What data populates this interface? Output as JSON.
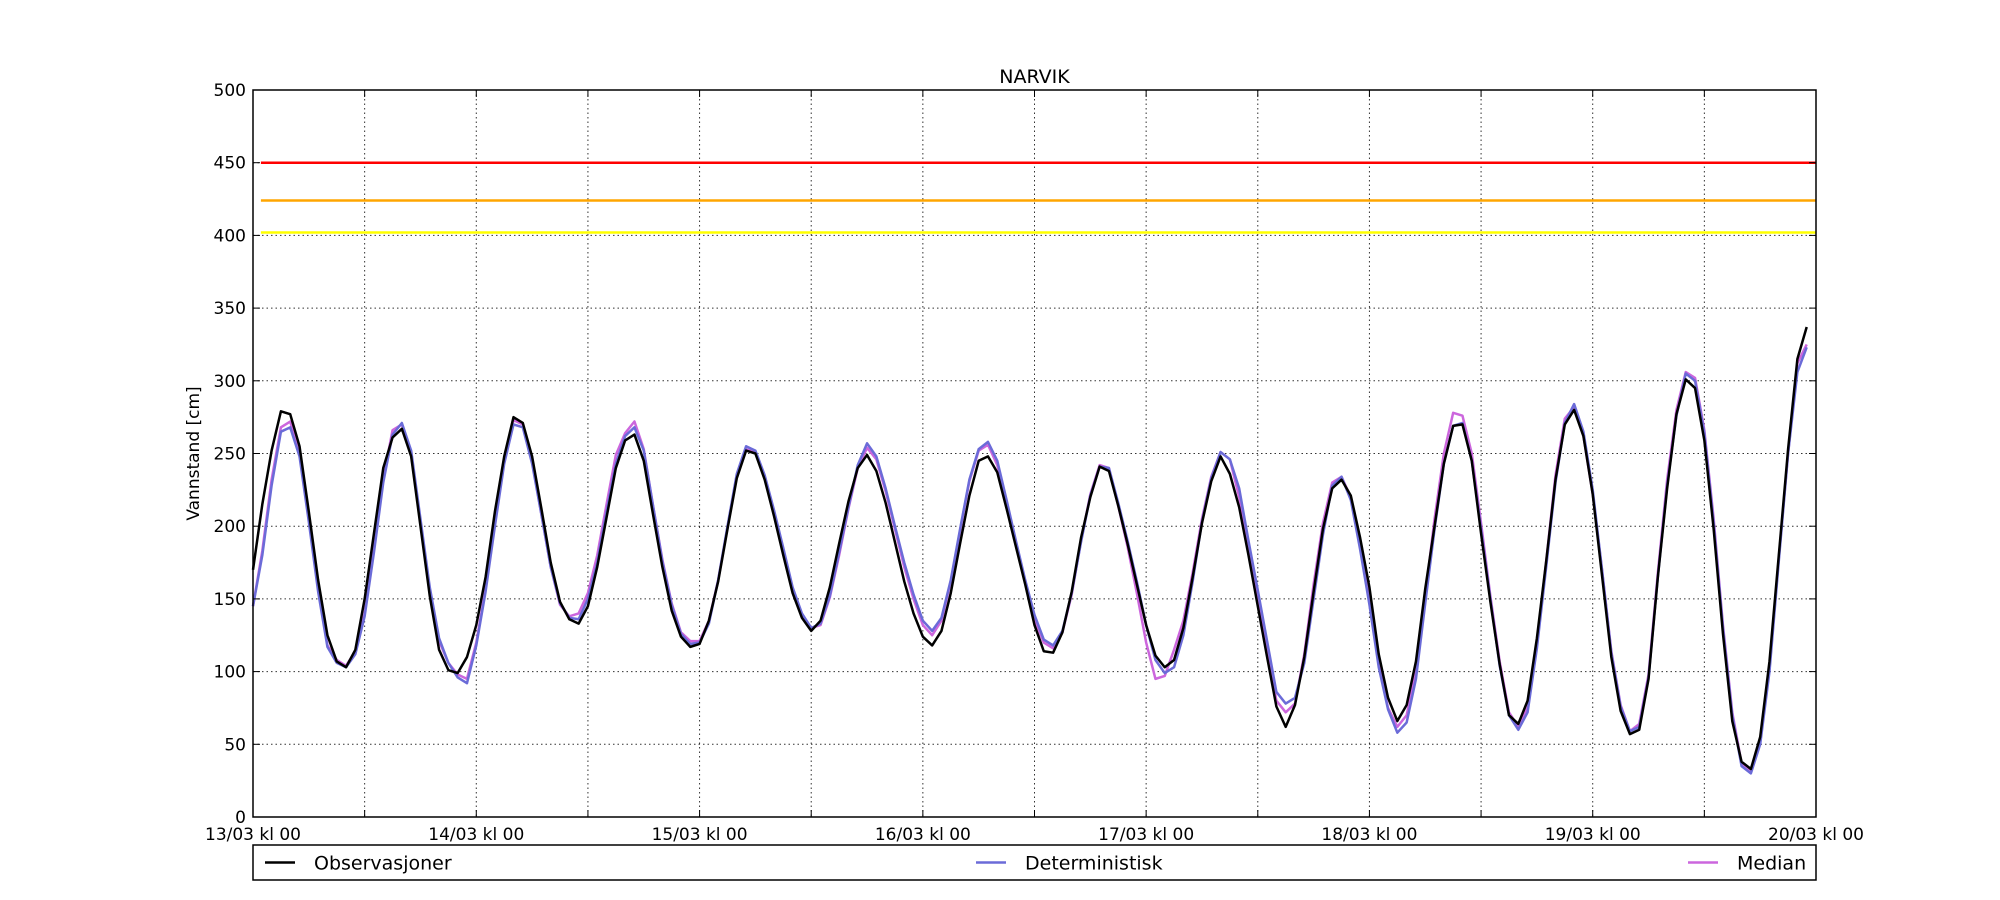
{
  "chart_data": {
    "type": "line",
    "title": "NARVIK",
    "xlabel": "",
    "ylabel": "Vannstand [cm]",
    "ylim": [
      0,
      500
    ],
    "yticks": [
      0,
      50,
      100,
      150,
      200,
      250,
      300,
      350,
      400,
      450,
      500
    ],
    "x_range_hours": [
      0,
      168
    ],
    "xtick_labels": [
      "13/03 kl 00",
      "14/03 kl 00",
      "15/03 kl 00",
      "16/03 kl 00",
      "17/03 kl 00",
      "18/03 kl 00",
      "19/03 kl 00",
      "20/03 kl 00"
    ],
    "grid": true,
    "legend_placement": "bottom",
    "thresholds": [
      {
        "value": 450,
        "color": "#ff0000"
      },
      {
        "value": 424,
        "color": "#ffa500"
      },
      {
        "value": 402,
        "color": "#ffff00"
      }
    ],
    "x_hours": [
      0,
      1,
      2,
      3,
      4,
      5,
      6,
      7,
      8,
      9,
      10,
      11,
      12,
      13,
      14,
      15,
      16,
      17,
      18,
      19,
      20,
      21,
      22,
      23,
      24,
      25,
      26,
      27,
      28,
      29,
      30,
      31,
      32,
      33,
      34,
      35,
      36,
      37,
      38,
      39,
      40,
      41,
      42,
      43,
      44,
      45,
      46,
      47,
      48,
      49,
      50,
      51,
      52,
      53,
      54,
      55,
      56,
      57,
      58,
      59,
      60,
      61,
      62,
      63,
      64,
      65,
      66,
      67,
      68,
      69,
      70,
      71,
      72,
      73,
      74,
      75,
      76,
      77,
      78,
      79,
      80,
      81,
      82,
      83,
      84,
      85,
      86,
      87,
      88,
      89,
      90,
      91,
      92,
      93,
      94,
      95,
      96,
      97,
      98,
      99,
      100,
      101,
      102,
      103,
      104,
      105,
      106,
      107,
      108,
      109,
      110,
      111,
      112,
      113,
      114,
      115,
      116,
      117,
      118,
      119,
      120,
      121,
      122,
      123,
      124,
      125,
      126,
      127,
      128,
      129,
      130,
      131,
      132,
      133,
      134,
      135,
      136,
      137,
      138,
      139,
      140,
      141,
      142,
      143,
      144,
      145,
      146,
      147,
      148,
      149,
      150,
      151,
      152,
      153,
      154,
      155,
      156,
      157,
      158,
      159,
      160,
      161,
      162,
      163,
      164,
      165,
      166,
      167,
      168
    ],
    "series": [
      {
        "name": "Observasjoner",
        "color": "#000000",
        "values": [
          170,
          215,
          252,
          279,
          277,
          255,
          210,
          163,
          125,
          107,
          103,
          115,
          150,
          195,
          240,
          261,
          267,
          248,
          200,
          152,
          115,
          101,
          99,
          110,
          132,
          165,
          210,
          248,
          275,
          271,
          248,
          212,
          175,
          148,
          136,
          133,
          145,
          172,
          206,
          240,
          259,
          263,
          245,
          208,
          172,
          142,
          124,
          117,
          119,
          135,
          162,
          198,
          233,
          252,
          250,
          232,
          207,
          180,
          154,
          137,
          128,
          135,
          158,
          188,
          217,
          240,
          249,
          238,
          216,
          189,
          162,
          140,
          124,
          118,
          128,
          154,
          188,
          221,
          245,
          248,
          237,
          212,
          186,
          160,
          132,
          114,
          113,
          127,
          155,
          192,
          220,
          241,
          238,
          214,
          188,
          160,
          132,
          111,
          103,
          108,
          130,
          165,
          202,
          231,
          248,
          236,
          213,
          180,
          145,
          110,
          76,
          62,
          77,
          110,
          155,
          198,
          226,
          232,
          221,
          192,
          158,
          112,
          82,
          66,
          77,
          107,
          157,
          200,
          243,
          269,
          270,
          245,
          195,
          148,
          105,
          70,
          64,
          80,
          123,
          176,
          232,
          270,
          280,
          262,
          222,
          166,
          110,
          73,
          57,
          60,
          95,
          165,
          226,
          277,
          301,
          295,
          259,
          198,
          126,
          66,
          38,
          33,
          55,
          107,
          180,
          253,
          315,
          337
        ]
      },
      {
        "name": "Deterministisk",
        "color": "#6b6bd8",
        "values": [
          145,
          180,
          228,
          265,
          268,
          248,
          203,
          155,
          117,
          106,
          103,
          112,
          138,
          182,
          230,
          263,
          271,
          252,
          205,
          158,
          123,
          106,
          96,
          92,
          118,
          155,
          200,
          243,
          270,
          268,
          243,
          208,
          172,
          147,
          137,
          136,
          150,
          175,
          210,
          243,
          262,
          268,
          252,
          214,
          176,
          146,
          126,
          119,
          120,
          133,
          163,
          200,
          236,
          255,
          252,
          235,
          211,
          185,
          158,
          140,
          130,
          133,
          152,
          182,
          213,
          242,
          257,
          248,
          226,
          200,
          175,
          153,
          135,
          128,
          137,
          163,
          198,
          232,
          253,
          258,
          245,
          218,
          190,
          163,
          139,
          122,
          118,
          128,
          154,
          189,
          221,
          241,
          240,
          216,
          190,
          162,
          132,
          108,
          99,
          103,
          125,
          162,
          203,
          233,
          251,
          246,
          226,
          190,
          156,
          121,
          86,
          78,
          82,
          106,
          150,
          194,
          228,
          234,
          218,
          184,
          146,
          103,
          74,
          58,
          65,
          95,
          147,
          198,
          243,
          269,
          271,
          245,
          198,
          150,
          104,
          70,
          60,
          72,
          116,
          172,
          230,
          271,
          284,
          265,
          225,
          170,
          113,
          76,
          59,
          62,
          96,
          165,
          228,
          276,
          305,
          300,
          264,
          202,
          130,
          70,
          35,
          30,
          50,
          100,
          176,
          250,
          306,
          323
        ]
      },
      {
        "name": "Median",
        "color": "#cc66dd",
        "values": [
          145,
          183,
          232,
          268,
          272,
          250,
          205,
          157,
          118,
          108,
          104,
          114,
          140,
          184,
          233,
          266,
          270,
          249,
          203,
          156,
          121,
          106,
          98,
          95,
          120,
          157,
          203,
          246,
          273,
          270,
          245,
          208,
          172,
          146,
          138,
          140,
          154,
          180,
          215,
          249,
          264,
          272,
          253,
          214,
          177,
          147,
          127,
          121,
          121,
          135,
          163,
          199,
          235,
          253,
          251,
          234,
          209,
          183,
          157,
          139,
          130,
          132,
          151,
          180,
          212,
          240,
          254,
          246,
          224,
          198,
          172,
          150,
          132,
          125,
          135,
          162,
          197,
          231,
          252,
          256,
          242,
          215,
          188,
          162,
          136,
          120,
          116,
          127,
          153,
          190,
          222,
          242,
          240,
          214,
          186,
          154,
          120,
          95,
          97,
          115,
          135,
          168,
          205,
          234,
          251,
          246,
          220,
          186,
          150,
          115,
          80,
          72,
          78,
          112,
          160,
          202,
          230,
          234,
          220,
          188,
          150,
          105,
          75,
          62,
          70,
          100,
          152,
          205,
          250,
          278,
          276,
          250,
          202,
          152,
          107,
          72,
          62,
          76,
          120,
          176,
          235,
          274,
          282,
          262,
          222,
          170,
          114,
          77,
          59,
          64,
          98,
          168,
          232,
          280,
          306,
          302,
          266,
          205,
          132,
          72,
          37,
          32,
          52,
          102,
          178,
          250,
          312,
          325
        ]
      }
    ]
  }
}
